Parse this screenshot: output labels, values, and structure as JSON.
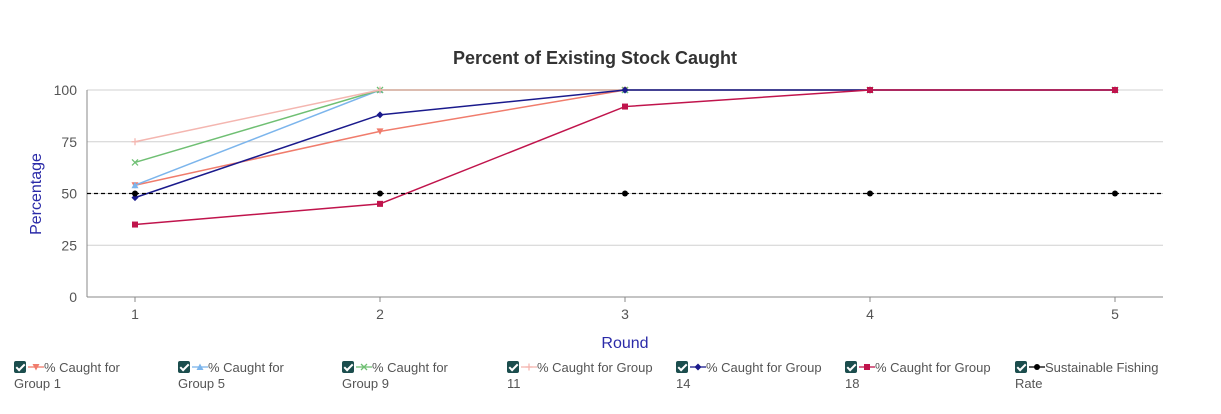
{
  "chart_data": {
    "type": "line",
    "title": "Percent of Existing Stock Caught",
    "xlabel": "Round",
    "ylabel": "Percentage",
    "x": [
      1,
      2,
      3,
      4,
      5
    ],
    "ylim": [
      0,
      100
    ],
    "yticks": [
      0,
      25,
      50,
      75,
      100
    ],
    "grid": true,
    "legend_position": "bottom",
    "series": [
      {
        "name": "% Caught for Group 1",
        "line1": "% Caught for",
        "line2": "Group 1",
        "color": "#f07c6c",
        "marker": "triangle-down",
        "values": [
          54,
          80,
          100,
          100,
          100
        ]
      },
      {
        "name": "% Caught for Group 5",
        "line1": "% Caught for",
        "line2": "Group 5",
        "color": "#7cb5ec",
        "marker": "triangle-up",
        "values": [
          54,
          100,
          100,
          100,
          100
        ]
      },
      {
        "name": "% Caught for Group 9",
        "line1": "% Caught for",
        "line2": "Group 9",
        "color": "#6fbf73",
        "marker": "x",
        "values": [
          65,
          100,
          100,
          100,
          100
        ]
      },
      {
        "name": "% Caught for Group 11",
        "line1": "% Caught for Group",
        "line2": "11",
        "color": "#f4b6b0",
        "marker": "plus",
        "values": [
          75,
          100,
          100,
          100,
          100
        ]
      },
      {
        "name": "% Caught for Group 14",
        "line1": "% Caught for Group",
        "line2": "14",
        "color": "#1a1a8c",
        "marker": "diamond",
        "values": [
          48,
          88,
          100,
          100,
          100
        ]
      },
      {
        "name": "% Caught for Group 18",
        "line1": "% Caught for Group",
        "line2": "18",
        "color": "#c0144c",
        "marker": "square",
        "values": [
          35,
          45,
          92,
          100,
          100
        ]
      },
      {
        "name": "Sustainable Fishing Rate",
        "line1": "Sustainable Fishing",
        "line2": "Rate",
        "color": "#000000",
        "marker": "circle",
        "dashed": true,
        "values": [
          50,
          50,
          50,
          50,
          50
        ]
      }
    ]
  }
}
